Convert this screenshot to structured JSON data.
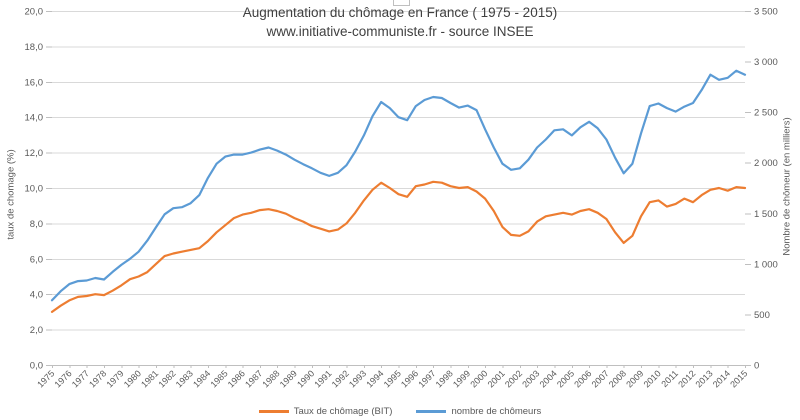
{
  "title": {
    "line1": "Augmentation du chômage en France ( 1975 - 2015)",
    "line2": "www.initiative-communiste.fr - source INSEE"
  },
  "chart_data": {
    "type": "line",
    "title": "Augmentation du chômage en France ( 1975 - 2015)",
    "subtitle": "www.initiative-communiste.fr - source INSEE",
    "grid": true,
    "legend_position": "bottom",
    "x_start": 1975,
    "x_step": 0.5,
    "x_end": 2015,
    "x_tick_labels": [
      "1975",
      "1976",
      "1977",
      "1978",
      "1979",
      "1980",
      "1981",
      "1982",
      "1983",
      "1984",
      "1985",
      "1986",
      "1987",
      "1988",
      "1989",
      "1990",
      "1991",
      "1992",
      "1993",
      "1994",
      "1995",
      "1996",
      "1997",
      "1998",
      "1999",
      "2000",
      "2001",
      "2002",
      "2003",
      "2004",
      "2005",
      "2006",
      "2007",
      "2008",
      "2009",
      "2010",
      "2011",
      "2012",
      "2013",
      "2014",
      "2015"
    ],
    "axes": {
      "left": {
        "label": "taux de chomage (%)",
        "range": [
          0,
          20
        ],
        "tick_step": 2,
        "tick_labels": [
          "0,0",
          "2,0",
          "4,0",
          "6,0",
          "8,0",
          "10,0",
          "12,0",
          "14,0",
          "16,0",
          "18,0",
          "20,0"
        ]
      },
      "right": {
        "label": "Nombre de chômeur (en milliers)",
        "range": [
          0,
          3500
        ],
        "tick_step": 500,
        "tick_labels": [
          "0",
          "500",
          "1 000",
          "1 500",
          "2 000",
          "2 500",
          "3 000",
          "3 500"
        ]
      }
    },
    "series": [
      {
        "name": "Taux de chômage (BIT)",
        "color": "#ED7D31",
        "axis": "left",
        "values": [
          3.0,
          3.35,
          3.65,
          3.85,
          3.9,
          4.0,
          3.95,
          4.2,
          4.5,
          4.85,
          5.0,
          5.25,
          5.7,
          6.15,
          6.3,
          6.4,
          6.5,
          6.6,
          7.0,
          7.5,
          7.9,
          8.3,
          8.5,
          8.6,
          8.75,
          8.8,
          8.7,
          8.55,
          8.3,
          8.1,
          7.85,
          7.7,
          7.55,
          7.65,
          8.0,
          8.6,
          9.3,
          9.9,
          10.3,
          10.0,
          9.65,
          9.5,
          10.1,
          10.2,
          10.35,
          10.3,
          10.1,
          10.0,
          10.05,
          9.8,
          9.4,
          8.7,
          7.8,
          7.35,
          7.3,
          7.55,
          8.1,
          8.4,
          8.5,
          8.6,
          8.5,
          8.7,
          8.8,
          8.6,
          8.25,
          7.5,
          6.9,
          7.3,
          8.4,
          9.2,
          9.3,
          8.95,
          9.1,
          9.4,
          9.2,
          9.6,
          9.9,
          10.0,
          9.85,
          10.05,
          10.0
        ]
      },
      {
        "name": "nombre de chômeurs",
        "color": "#5B9BD5",
        "axis": "right",
        "values": [
          640,
          730,
          800,
          830,
          835,
          860,
          845,
          920,
          990,
          1050,
          1120,
          1230,
          1360,
          1490,
          1550,
          1560,
          1600,
          1680,
          1850,
          1990,
          2060,
          2080,
          2080,
          2100,
          2130,
          2150,
          2120,
          2080,
          2030,
          1985,
          1945,
          1900,
          1870,
          1900,
          1975,
          2110,
          2270,
          2460,
          2600,
          2540,
          2450,
          2420,
          2560,
          2620,
          2650,
          2640,
          2590,
          2545,
          2565,
          2520,
          2330,
          2150,
          1990,
          1930,
          1945,
          2030,
          2150,
          2230,
          2320,
          2330,
          2270,
          2350,
          2405,
          2340,
          2230,
          2050,
          1895,
          1990,
          2290,
          2560,
          2585,
          2540,
          2505,
          2555,
          2590,
          2720,
          2870,
          2820,
          2840,
          2910,
          2870
        ]
      }
    ],
    "style": {
      "gridline_color": "#D9D9D9",
      "axis_color": "#BFBFBF",
      "text_color": "#595959",
      "title_color": "#404040"
    }
  }
}
